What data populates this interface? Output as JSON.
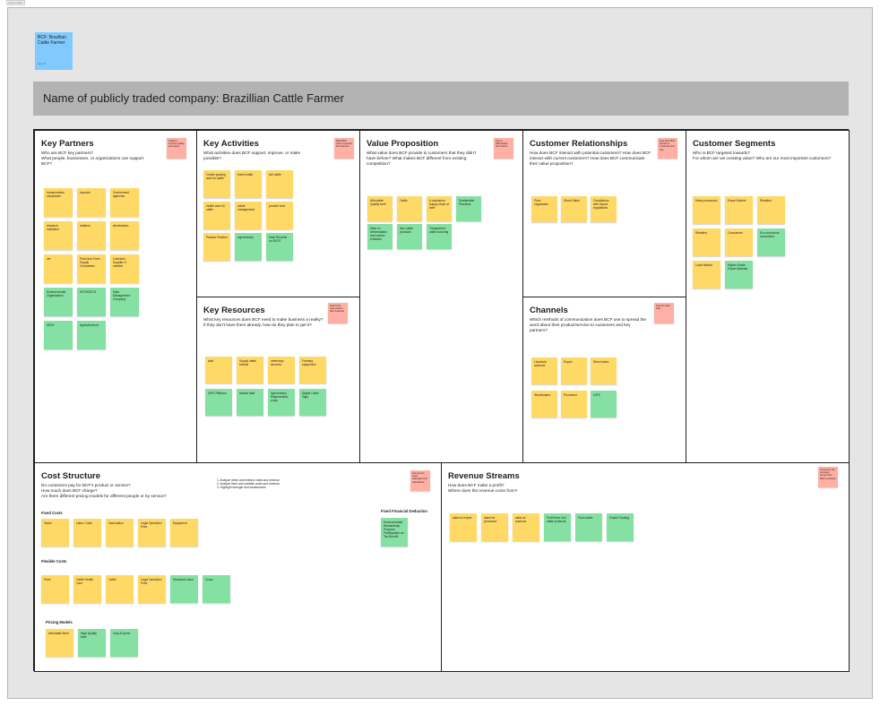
{
  "frame_label": "section label",
  "header_card": {
    "text": "BCF: Brazilian Cattle Farmer",
    "meta": "Jake Ho"
  },
  "title_bar": "Name of publicly traded company: Brazillian Cattle Farmer",
  "sections": {
    "key_partners": {
      "title": "Key Partners",
      "desc": "Who are BCF key partners?\nWhat people, businesses, or organizations can support BCF?",
      "hint": "Listed to improve quality and output",
      "notes": [
        {
          "text": "transportation companies",
          "color": "yellow"
        },
        {
          "text": "exporter",
          "color": "yellow"
        },
        {
          "text": "Government agencies",
          "color": "yellow"
        },
        {
          "text": "research institution",
          "color": "yellow"
        },
        {
          "text": "retailers",
          "color": "yellow"
        },
        {
          "text": "wholesalers",
          "color": "yellow"
        },
        {
          "text": "vet",
          "color": "yellow"
        },
        {
          "text": "Feed and Farm Supply Companies",
          "color": "yellow"
        },
        {
          "text": "Livestock Supplier if needed",
          "color": "yellow"
        },
        {
          "text": "Environmental Organization",
          "color": "green"
        },
        {
          "text": "WTO/OECD",
          "color": "green"
        },
        {
          "text": "Data Management Company",
          "color": "green"
        },
        {
          "text": "SEFA",
          "color": "green"
        },
        {
          "text": "Agricultural ed",
          "color": "green"
        }
      ]
    },
    "key_activities": {
      "title": "Key Activities",
      "desc": "What activities does BCF support, improve, or make possible?",
      "hint": "What BCF uses to operate the business",
      "notes": [
        {
          "text": "Create grazing land for cattle",
          "color": "yellow"
        },
        {
          "text": "breed cattle",
          "color": "yellow"
        },
        {
          "text": "sell cattle",
          "color": "yellow"
        },
        {
          "text": "health care for cattle",
          "color": "yellow"
        },
        {
          "text": "waste management",
          "color": "yellow"
        },
        {
          "text": "provide food",
          "color": "yellow"
        },
        {
          "text": "Pasture Rotated",
          "color": "yellow"
        },
        {
          "text": "Agroforestry",
          "color": "green"
        },
        {
          "text": "Data Records on BCFS",
          "color": "green"
        }
      ]
    },
    "key_resources": {
      "title": "Key Resources",
      "desc": "What key resources does BCF need to make business a reality? If they don't have them already, how do they plan to get it?",
      "hint": "what is the most used in their business",
      "notes": [
        {
          "text": "land",
          "color": "yellow"
        },
        {
          "text": "Supply cattle breeds",
          "color": "yellow"
        },
        {
          "text": "veterinary services",
          "color": "yellow"
        },
        {
          "text": "Farming equipment",
          "color": "yellow"
        },
        {
          "text": "GIFS Platform",
          "color": "green"
        },
        {
          "text": "trained staff",
          "color": "green"
        },
        {
          "text": "Agroforestry Regenerative crops",
          "color": "green"
        },
        {
          "text": "Digital Cattle Tags",
          "color": "green"
        }
      ]
    },
    "value_proposition": {
      "title": "Value Proposition",
      "desc": "What value does BCF provide to customers that they didn't have before? What makes BCF different from existing competition?",
      "hint": "how to differentiate from others",
      "notes": [
        {
          "text": "Affordable Quality beef",
          "color": "yellow"
        },
        {
          "text": "Cattle",
          "color": "yellow"
        },
        {
          "text": "A consistent supply chain of beef",
          "color": "yellow"
        },
        {
          "text": "Sustainable Practices",
          "color": "green"
        },
        {
          "text": "Data on deforestation and carbon emission",
          "color": "green"
        },
        {
          "text": "Non cattle products",
          "color": "green"
        },
        {
          "text": "Transparent cattle sourcing",
          "color": "green"
        }
      ]
    },
    "customer_relationships": {
      "title": "Customer Relationships",
      "desc": "How does BCF interact with potential customers? How does BCF interact with current customers? How does BCF communicate their value proposition?",
      "hint": "How does BCF contact to customers this way",
      "notes": [
        {
          "text": "Price negotiation",
          "color": "yellow"
        },
        {
          "text": "Direct Sales",
          "color": "yellow"
        },
        {
          "text": "Compliance with export regulations",
          "color": "yellow"
        }
      ]
    },
    "channels": {
      "title": "Channels",
      "desc": "Which methods of communication does BCF use to spread the word about their product/service to customers and key partners?",
      "hint": "How do cattle sold",
      "notes": [
        {
          "text": "Livestock auctions",
          "color": "yellow"
        },
        {
          "text": "Export",
          "color": "yellow"
        },
        {
          "text": "Direct sales",
          "color": "yellow"
        },
        {
          "text": "Wholesalers",
          "color": "yellow"
        },
        {
          "text": "Processor",
          "color": "yellow"
        },
        {
          "text": "GIFS",
          "color": "green"
        }
      ]
    },
    "customer_segments": {
      "title": "Customer Segments",
      "desc": "Who is BCF targeted towards?\nFor whom are we creating value? Who are our most important customers?",
      "notes": [
        {
          "text": "Meat processors",
          "color": "yellow"
        },
        {
          "text": "Export Market",
          "color": "yellow"
        },
        {
          "text": "Retailers",
          "color": "yellow"
        },
        {
          "text": "Retailers",
          "color": "yellow"
        },
        {
          "text": "Consumers",
          "color": "yellow"
        },
        {
          "text": "Eco-conscious consumers",
          "color": "green"
        },
        {
          "text": "Local Market",
          "color": "yellow"
        },
        {
          "text": "Higher Grade Export Markets",
          "color": "green"
        }
      ]
    },
    "cost_structure": {
      "title": "Cost Structure",
      "desc": "Do customers pay for BCF's product or service?\nHow much does BCF charge?\nAre there different pricing models for different people or by service?",
      "steps": "1. Analyze direct and indirect costs and revenue\n2. Analyze fixed and variable costs and revenue\n3. Highlight strength and weaknesses",
      "hint": "how are the costs calculated and rationalized",
      "fixed_label": "Fixed Costs",
      "fixed_notes": [
        {
          "text": "Taxes",
          "color": "yellow"
        },
        {
          "text": "Labor Costs",
          "color": "yellow"
        },
        {
          "text": "Vaccination",
          "color": "yellow"
        },
        {
          "text": "Legal Operation Fees",
          "color": "yellow"
        },
        {
          "text": "Equipment",
          "color": "yellow"
        }
      ],
      "flexible_label": "Flexible Costs",
      "flexible_notes": [
        {
          "text": "Feed",
          "color": "yellow"
        },
        {
          "text": "Cattle Health Care",
          "color": "yellow"
        },
        {
          "text": "Cattle",
          "color": "yellow"
        },
        {
          "text": "Legal Operation Fees",
          "color": "yellow"
        },
        {
          "text": "Seasonal Labor",
          "color": "green"
        },
        {
          "text": "Crops",
          "color": "green"
        }
      ],
      "pricing_label": "Pricing Models",
      "pricing_notes": [
        {
          "text": "Affordable Beef",
          "color": "yellow"
        },
        {
          "text": "High Quality beef",
          "color": "green"
        },
        {
          "text": "Gray Exports",
          "color": "green"
        }
      ],
      "deduction_label": "Fixed Financial Deduction",
      "deduction_notes": [
        {
          "text": "Environmental Stewardship Program Participation as Tax Benefit",
          "color": "green"
        }
      ]
    },
    "revenue_streams": {
      "title": "Revenue Streams",
      "desc": "How does BCF make a profit?\nWhere does the revenue come from?",
      "hint": "Income for the company comes from BCF's products",
      "notes": [
        {
          "text": "sales to export",
          "color": "yellow"
        },
        {
          "text": "sales for processor",
          "color": "yellow"
        },
        {
          "text": "sales at auctions",
          "color": "yellow"
        },
        {
          "text": "Profit from non cattle products",
          "color": "green"
        },
        {
          "text": "Farm sales",
          "color": "green"
        },
        {
          "text": "Grade Funding",
          "color": "green"
        }
      ]
    }
  },
  "colors": {
    "yellow": "#ffd966",
    "green": "#85e0a3",
    "red": "#ffafa3",
    "blue": "#80caff"
  }
}
